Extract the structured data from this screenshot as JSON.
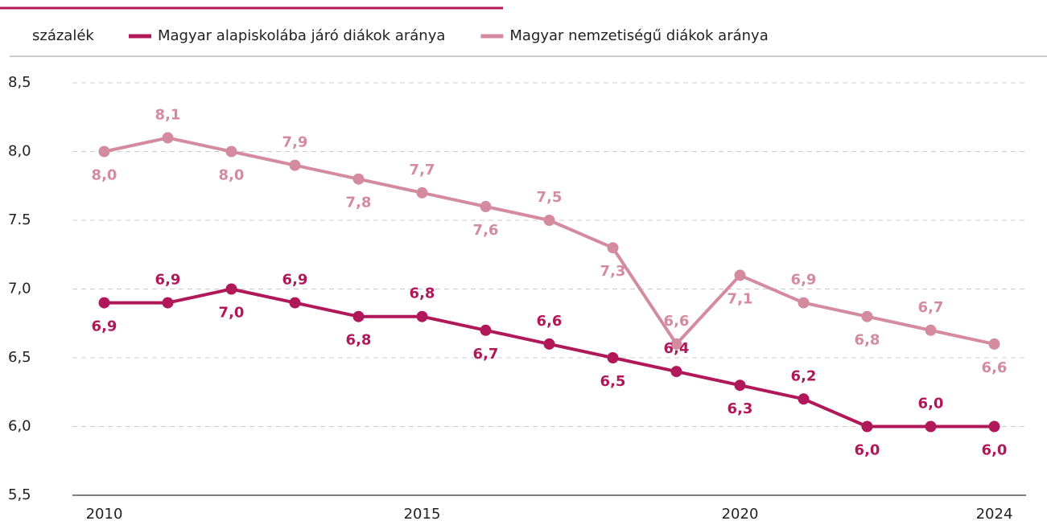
{
  "chart_data": {
    "type": "line",
    "unit_label": "százalék",
    "x": [
      2010,
      2011,
      2012,
      2013,
      2014,
      2015,
      2016,
      2017,
      2018,
      2019,
      2020,
      2021,
      2022,
      2023,
      2024
    ],
    "xlim": [
      2009.5,
      2024.5
    ],
    "xticks": [
      2010,
      2015,
      2020,
      2024
    ],
    "ylim": [
      5.5,
      8.5
    ],
    "yticks": [
      {
        "value": 5.5,
        "label": "5,5"
      },
      {
        "value": 6.0,
        "label": "6,0"
      },
      {
        "value": 6.5,
        "label": "6,5"
      },
      {
        "value": 7.0,
        "label": "7,0"
      },
      7.5,
      {
        "value": 8.0,
        "label": "8,0"
      },
      {
        "value": 8.5,
        "label": "8,5"
      }
    ],
    "grid": true,
    "series": [
      {
        "name": "Magyar alapiskolába járó diákok aránya",
        "color": "#b0185a",
        "values": [
          6.9,
          6.9,
          7.0,
          6.9,
          6.8,
          6.8,
          6.7,
          6.6,
          6.5,
          6.4,
          6.3,
          6.2,
          6.0,
          6.0,
          6.0
        ],
        "value_labels": [
          "6,9",
          "6,9",
          "7,0",
          "6,9",
          "6,8",
          "6,8",
          "6,7",
          "6,6",
          "6,5",
          "6,4",
          "6,3",
          "6,2",
          "6,0",
          "6,0",
          "6,0"
        ]
      },
      {
        "name": "Magyar nemzetiségű diákok aránya",
        "color": "#d48ba0",
        "values": [
          8.0,
          8.1,
          8.0,
          7.9,
          7.8,
          7.7,
          7.6,
          7.5,
          7.3,
          6.6,
          7.1,
          6.9,
          6.8,
          6.7,
          6.6
        ],
        "value_labels": [
          "8,0",
          "8,1",
          "8,0",
          "7,9",
          "7,8",
          "7,7",
          "7,6",
          "7,5",
          "7,3",
          "6,6",
          "7,1",
          "6,9",
          "6,8",
          "6,7",
          "6,6"
        ]
      }
    ]
  }
}
